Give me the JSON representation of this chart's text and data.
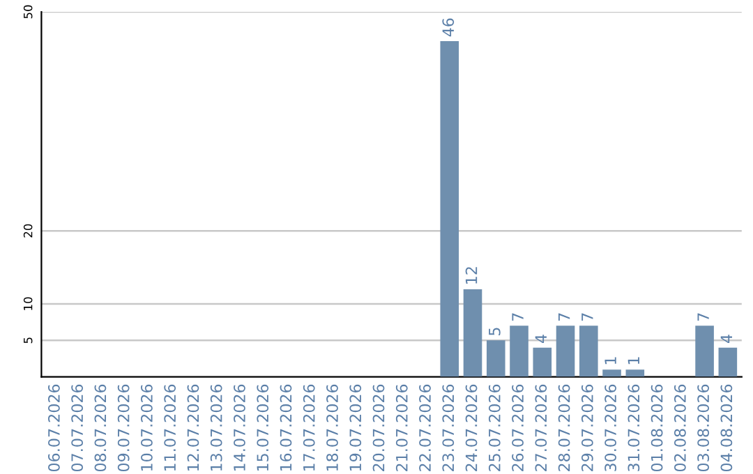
{
  "chart_data": {
    "type": "bar",
    "categories": [
      "06.07.2026",
      "07.07.2026",
      "08.07.2026",
      "09.07.2026",
      "10.07.2026",
      "11.07.2026",
      "12.07.2026",
      "13.07.2026",
      "14.07.2026",
      "15.07.2026",
      "16.07.2026",
      "17.07.2026",
      "18.07.2026",
      "19.07.2026",
      "20.07.2026",
      "21.07.2026",
      "22.07.2026",
      "23.07.2026",
      "24.07.2026",
      "25.07.2026",
      "26.07.2026",
      "27.07.2026",
      "28.07.2026",
      "29.07.2026",
      "30.07.2026",
      "31.07.2026",
      "01.08.2026",
      "02.08.2026",
      "03.08.2026",
      "04.08.2026"
    ],
    "values": [
      0,
      0,
      0,
      0,
      0,
      0,
      0,
      0,
      0,
      0,
      0,
      0,
      0,
      0,
      0,
      0,
      0,
      46,
      12,
      5,
      7,
      4,
      7,
      7,
      1,
      1,
      0,
      0,
      7,
      4
    ],
    "value_labels": [
      null,
      null,
      null,
      null,
      null,
      null,
      null,
      null,
      null,
      null,
      null,
      null,
      null,
      null,
      null,
      null,
      null,
      "46",
      "12",
      "5",
      "7",
      "4",
      "7",
      "7",
      "1",
      "1",
      null,
      null,
      "7",
      "4"
    ],
    "color": "#6f8fae",
    "ylim": [
      0,
      50
    ],
    "yticks": [
      5,
      10,
      20,
      50
    ],
    "grid": "y"
  }
}
